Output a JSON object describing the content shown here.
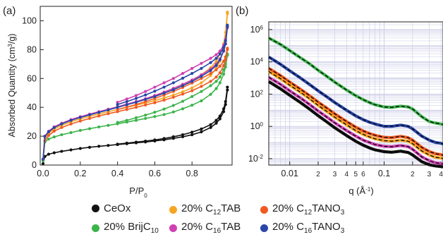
{
  "colors": {
    "CeOx": "#111111",
    "BrijC10": "#3cb44b",
    "C12TAB": "#f5a623",
    "C16TAB": "#d040b0",
    "C12TANO3": "#f05a22",
    "C16TANO3": "#2a46a8",
    "axis": "#222222",
    "grid": "#c9c9e6",
    "fit": "#000000"
  },
  "legend": {
    "ceox": "CeOx",
    "c12tab": {
      "pre": "20% C",
      "sub": "12",
      "post": "TAB"
    },
    "c12tano3": {
      "pre": "20% C",
      "sub": "12",
      "post": "TANO",
      "sub2": "3"
    },
    "brij": {
      "pre": "20% BrijC",
      "sub": "10",
      "post": ""
    },
    "c16tab": {
      "pre": "20% C",
      "sub": "16",
      "post": "TAB"
    },
    "c16tano3": {
      "pre": "20% C",
      "sub": "16",
      "post": "TANO",
      "sub2": "3"
    }
  },
  "chart_data": [
    {
      "panel_label": "(a)",
      "type": "line",
      "xlabel": "P/P0",
      "ylabel": "Absorbed Quantity (cm3/g)",
      "xlim": [
        0,
        1.0
      ],
      "ylim": [
        0,
        110
      ],
      "xticks": [
        "0.0",
        "0.2",
        "0.4",
        "0.6",
        "0.8"
      ],
      "yticks": [
        "0",
        "20",
        "40",
        "60",
        "80",
        "100"
      ],
      "x": [
        0.0,
        0.01,
        0.03,
        0.06,
        0.1,
        0.15,
        0.2,
        0.25,
        0.3,
        0.35,
        0.4,
        0.45,
        0.5,
        0.55,
        0.6,
        0.65,
        0.7,
        0.75,
        0.8,
        0.85,
        0.9,
        0.93,
        0.95,
        0.97,
        0.98,
        0.99
      ],
      "series": [
        {
          "name": "CeOx",
          "key": "CeOx",
          "adsorption": [
            1,
            6,
            7.5,
            8.5,
            9.5,
            10.5,
            11.5,
            12.3,
            13,
            13.6,
            14.2,
            14.8,
            15.4,
            16,
            16.7,
            17.5,
            18.5,
            19.6,
            21,
            23,
            26,
            29,
            32,
            37,
            42,
            52
          ],
          "desorption": [
            null,
            null,
            null,
            null,
            null,
            null,
            null,
            null,
            null,
            null,
            14.5,
            15.2,
            15.9,
            16.6,
            17.4,
            18.4,
            19.6,
            21,
            22.8,
            25,
            28,
            31,
            34,
            39,
            44,
            54
          ]
        },
        {
          "name": "20% BrijC10",
          "key": "BrijC10",
          "adsorption": [
            3,
            16,
            18,
            19.5,
            21,
            22.5,
            24,
            25.2,
            26.4,
            27.5,
            28.6,
            29.8,
            31,
            32.3,
            33.6,
            35,
            36.8,
            39,
            41.5,
            44.5,
            49,
            53,
            57,
            63,
            68,
            76
          ],
          "desorption": [
            null,
            null,
            null,
            null,
            null,
            null,
            null,
            null,
            null,
            null,
            29.5,
            31,
            32.8,
            34.6,
            36.6,
            38.8,
            41.3,
            44.2,
            47.5,
            51,
            55,
            58,
            61,
            66,
            70,
            77
          ]
        },
        {
          "name": "20% C12TAB",
          "key": "C12TAB",
          "adsorption": [
            4,
            19,
            22,
            25,
            27.5,
            30,
            32,
            33.8,
            35.4,
            37,
            38.5,
            40,
            41.5,
            43,
            44.7,
            46.5,
            48.5,
            50.8,
            53.5,
            57,
            62,
            67,
            72,
            80,
            88,
            105
          ],
          "desorption": [
            null,
            null,
            null,
            null,
            null,
            null,
            null,
            null,
            null,
            null,
            40,
            41.8,
            43.6,
            45.5,
            47.5,
            49.8,
            52.3,
            55.2,
            58.5,
            62.5,
            67.5,
            72,
            77,
            84,
            92,
            106
          ]
        },
        {
          "name": "20% C16TAB",
          "key": "C16TAB",
          "adsorption": [
            4,
            20,
            23.5,
            26.5,
            29,
            31.5,
            33.5,
            35.3,
            37,
            38.7,
            40.4,
            42.2,
            44,
            46,
            48.2,
            50.6,
            53.2,
            56,
            59,
            62.5,
            66.5,
            70,
            73.5,
            79,
            84,
            95
          ],
          "desorption": [
            null,
            null,
            null,
            null,
            null,
            null,
            null,
            null,
            null,
            null,
            43.5,
            45.8,
            48.2,
            51,
            54,
            57,
            60,
            63.5,
            67,
            70.5,
            74,
            76.5,
            79,
            83,
            87,
            96
          ]
        },
        {
          "name": "20% C12TANO3",
          "key": "C12TANO3",
          "adsorption": [
            4,
            17,
            20.5,
            23.5,
            26,
            28.5,
            30.5,
            32.3,
            34,
            35.6,
            37,
            38.5,
            40,
            41.6,
            43.2,
            45,
            47,
            49.2,
            51.5,
            54.5,
            58,
            61,
            64,
            69,
            73,
            80
          ],
          "desorption": [
            null,
            null,
            null,
            null,
            null,
            null,
            null,
            null,
            null,
            null,
            38.5,
            40.2,
            42,
            44,
            46.2,
            48.5,
            51,
            53.8,
            56.8,
            60,
            63.5,
            66,
            68.5,
            72,
            75,
            81
          ]
        },
        {
          "name": "20% C16TANO3",
          "key": "C16TANO3",
          "adsorption": [
            4,
            20,
            23,
            26,
            28.5,
            31,
            33,
            34.8,
            36.5,
            38.2,
            40,
            41.8,
            43.5,
            45.5,
            47.5,
            49.8,
            52.2,
            55,
            58,
            61.5,
            65.5,
            69,
            73,
            79,
            84,
            96
          ],
          "desorption": [
            null,
            null,
            null,
            null,
            null,
            null,
            null,
            null,
            null,
            null,
            42,
            44,
            46.2,
            48.6,
            51.2,
            54,
            57,
            60.2,
            63.5,
            67,
            71,
            74,
            77,
            81.5,
            86,
            97
          ]
        }
      ]
    },
    {
      "panel_label": "(b)",
      "type": "line",
      "xscale": "log",
      "yscale": "log",
      "xlabel": "q (Å-1)",
      "xlim": [
        0.006,
        0.42
      ],
      "ylim": [
        0.004,
        3000000
      ],
      "xticks": [
        "0.01",
        "2",
        "3",
        "4",
        "5",
        "6",
        "0.1",
        "2",
        "3",
        "4"
      ],
      "ytick_exponents": [
        "6",
        "4",
        "2",
        "0",
        "-2"
      ],
      "grid": true,
      "fit_style": "dashed",
      "x": [
        0.006,
        0.008,
        0.01,
        0.013,
        0.016,
        0.02,
        0.025,
        0.03,
        0.04,
        0.05,
        0.06,
        0.07,
        0.08,
        0.1,
        0.12,
        0.15,
        0.18,
        0.2,
        0.25,
        0.3,
        0.35,
        0.4,
        0.42
      ],
      "series": [
        {
          "key": "BrijC10",
          "values": [
            300000,
            120000,
            50000,
            18000,
            8000,
            3000,
            1200,
            550,
            180,
            80,
            45,
            30,
            22,
            16,
            15,
            18,
            16,
            12,
            4,
            2,
            1.6,
            1.4,
            1.3
          ]
        },
        {
          "key": "C16TANO3",
          "values": [
            20000,
            7000,
            2800,
            1000,
            420,
            160,
            65,
            30,
            10,
            4.5,
            2.6,
            1.8,
            1.4,
            1.0,
            1.0,
            1.2,
            1.0,
            0.7,
            0.25,
            0.14,
            0.1,
            0.09,
            0.08
          ]
        },
        {
          "key": "C12TANO3",
          "values": [
            4000,
            1400,
            560,
            200,
            85,
            32,
            13,
            6,
            2,
            0.9,
            0.52,
            0.36,
            0.28,
            0.21,
            0.2,
            0.24,
            0.2,
            0.14,
            0.05,
            0.028,
            0.02,
            0.018,
            0.016
          ]
        },
        {
          "key": "C12TAB",
          "values": [
            2500,
            900,
            360,
            130,
            55,
            20,
            8,
            3.7,
            1.25,
            0.55,
            0.32,
            0.22,
            0.17,
            0.13,
            0.12,
            0.14,
            0.12,
            0.085,
            0.03,
            0.017,
            0.012,
            0.011,
            0.01
          ]
        },
        {
          "key": "C16TAB",
          "values": [
            1100,
            400,
            160,
            58,
            24,
            9,
            3.6,
            1.65,
            0.55,
            0.25,
            0.14,
            0.1,
            0.075,
            0.058,
            0.055,
            0.065,
            0.055,
            0.038,
            0.013,
            0.0075,
            0.0055,
            0.005,
            0.0045
          ]
        },
        {
          "key": "CeOx",
          "values": [
            600,
            210,
            85,
            30,
            12.5,
            4.6,
            1.8,
            0.82,
            0.27,
            0.12,
            0.068,
            0.046,
            0.035,
            0.027,
            0.025,
            0.029,
            0.024,
            0.017,
            0.0065,
            0.0042,
            0.0035,
            0.0032,
            0.003
          ]
        }
      ]
    }
  ]
}
